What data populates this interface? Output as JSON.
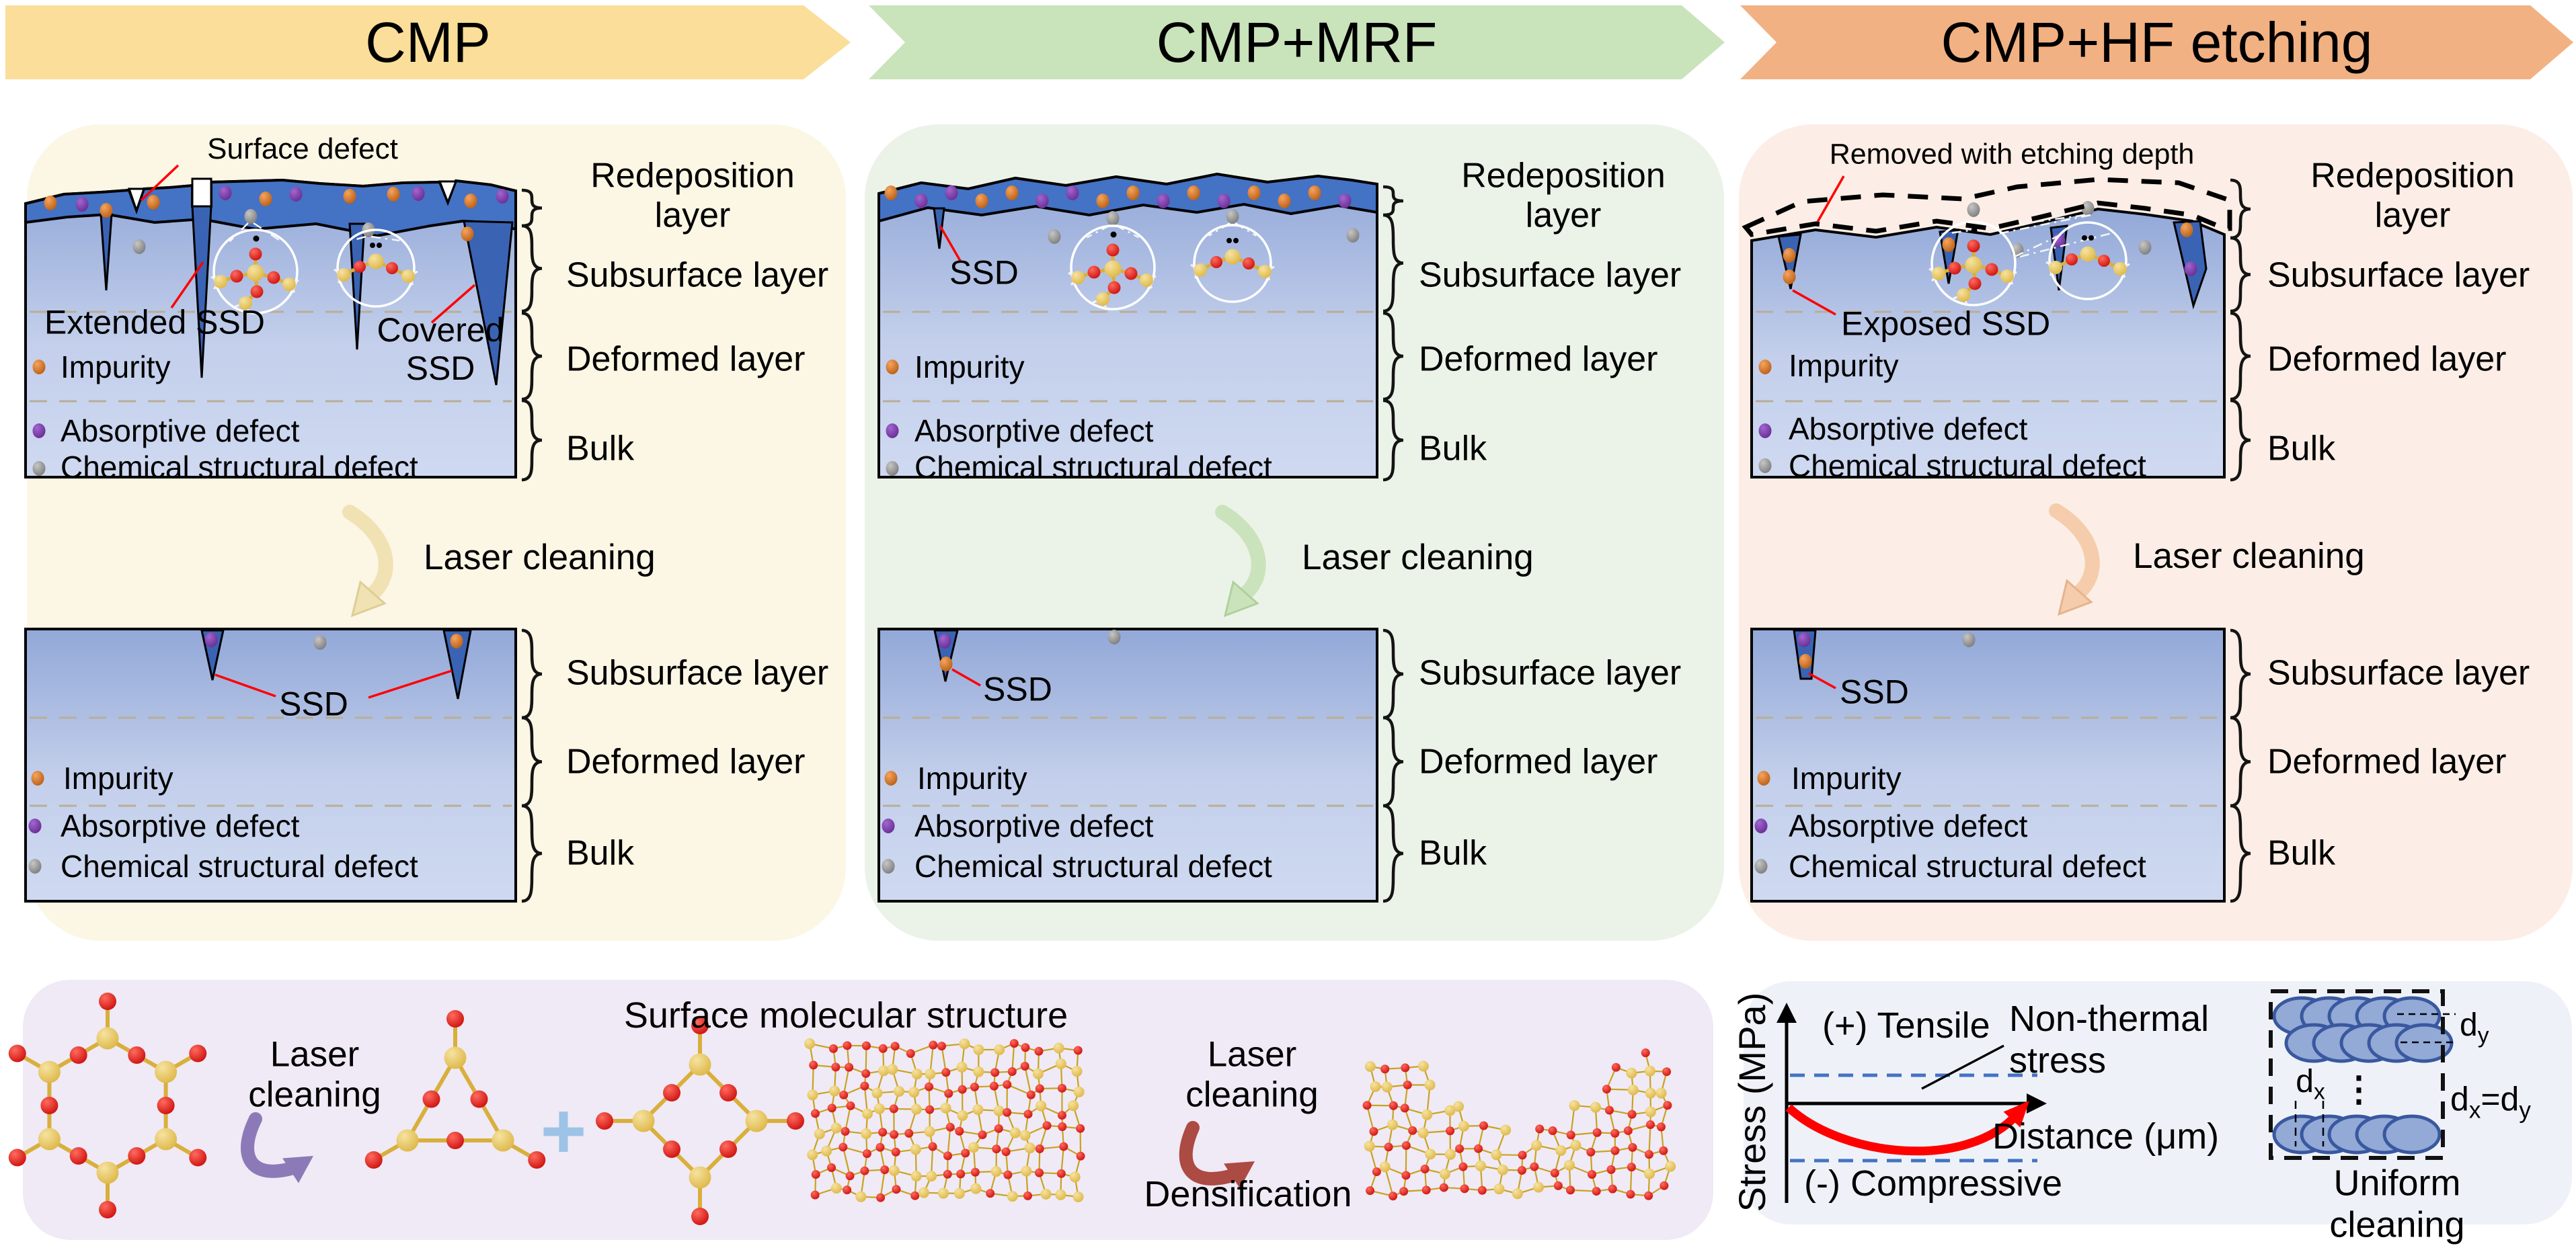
{
  "headers": [
    {
      "label": "CMP"
    },
    {
      "label": "CMP+MRF"
    },
    {
      "label": "CMP+HF etching"
    }
  ],
  "panels": [
    {
      "surface_annotation": "Surface defect",
      "ssd_label_a": "Extended SSD",
      "ssd_label_b": "Covered SSD",
      "laser": "Laser cleaning",
      "ssd_bottom": "SSD",
      "legend": [
        "Impurity",
        "Absorptive defect",
        "Chemical structural defect"
      ],
      "layers_top": [
        "Redeposition layer",
        "Subsurface layer",
        "Deformed layer",
        "Bulk"
      ],
      "layers_bottom": [
        "Subsurface layer",
        "Deformed layer",
        "Bulk"
      ]
    },
    {
      "ssd_label_a": "SSD",
      "laser": "Laser cleaning",
      "ssd_bottom": "SSD",
      "legend": [
        "Impurity",
        "Absorptive defect",
        "Chemical structural defect"
      ],
      "layers_top": [
        "Redeposition layer",
        "Subsurface layer",
        "Deformed layer",
        "Bulk"
      ],
      "layers_bottom": [
        "Subsurface layer",
        "Deformed layer",
        "Bulk"
      ]
    },
    {
      "surface_annotation": "Removed with etching depth",
      "ssd_label_a": "Exposed SSD",
      "laser": "Laser cleaning",
      "ssd_bottom": "SSD",
      "legend": [
        "Impurity",
        "Absorptive defect",
        "Chemical structural defect"
      ],
      "layers_top": [
        "Redeposition layer",
        "Subsurface layer",
        "Deformed layer",
        "Bulk"
      ],
      "layers_bottom": [
        "Subsurface layer",
        "Deformed layer",
        "Bulk"
      ]
    }
  ],
  "molecular_panel": {
    "title": "Surface molecular structure",
    "laser_left": "Laser cleaning",
    "plus": "+",
    "laser_right": "Laser cleaning",
    "densification": "Densification"
  },
  "stress_panel": {
    "ylabel": "Stress (MPa)",
    "tensile": "(+) Tensile",
    "nonthermal": "Non-thermal stress",
    "xlabel": "Distance (μm)",
    "compressive": "(-) Compressive",
    "uniform": "Uniform cleaning",
    "vdots": "⋮",
    "d": "d",
    "sub_x": "x",
    "sub_y": "y",
    "eq": "="
  },
  "colors": {
    "arrow_cmp": "#FADE99",
    "arrow_mrf": "#C9E3BB",
    "arrow_hf": "#F2B183",
    "card_cmp": "#FCF6E5",
    "card_mrf": "#EBF3E8",
    "card_hf": "#FCEEE6",
    "card_mol": "#EFEAF5",
    "card_stress": "#EEF2F8",
    "impurity": "#C55A11",
    "absorptive": "#7030A0",
    "chemical": "#808080",
    "redeposition_band": "#4472C4",
    "crack": "#3A63B4",
    "silicon": "#E0B73C",
    "oxygen": "#DD1405",
    "laser_arrow_cmp": "#F1E2B3",
    "laser_arrow_mrf": "#CBE3BC",
    "laser_arrow_hf": "#F5CDAC",
    "mol_arrow_left": "#8C7AB8",
    "mol_arrow_right": "#AC4A44",
    "plus": "#9DC3E6",
    "stress_dashed": "#4472C4",
    "stress_curve": "#FF0000",
    "spot_fill": "#93A9D6",
    "spot_stroke": "#39589F"
  }
}
